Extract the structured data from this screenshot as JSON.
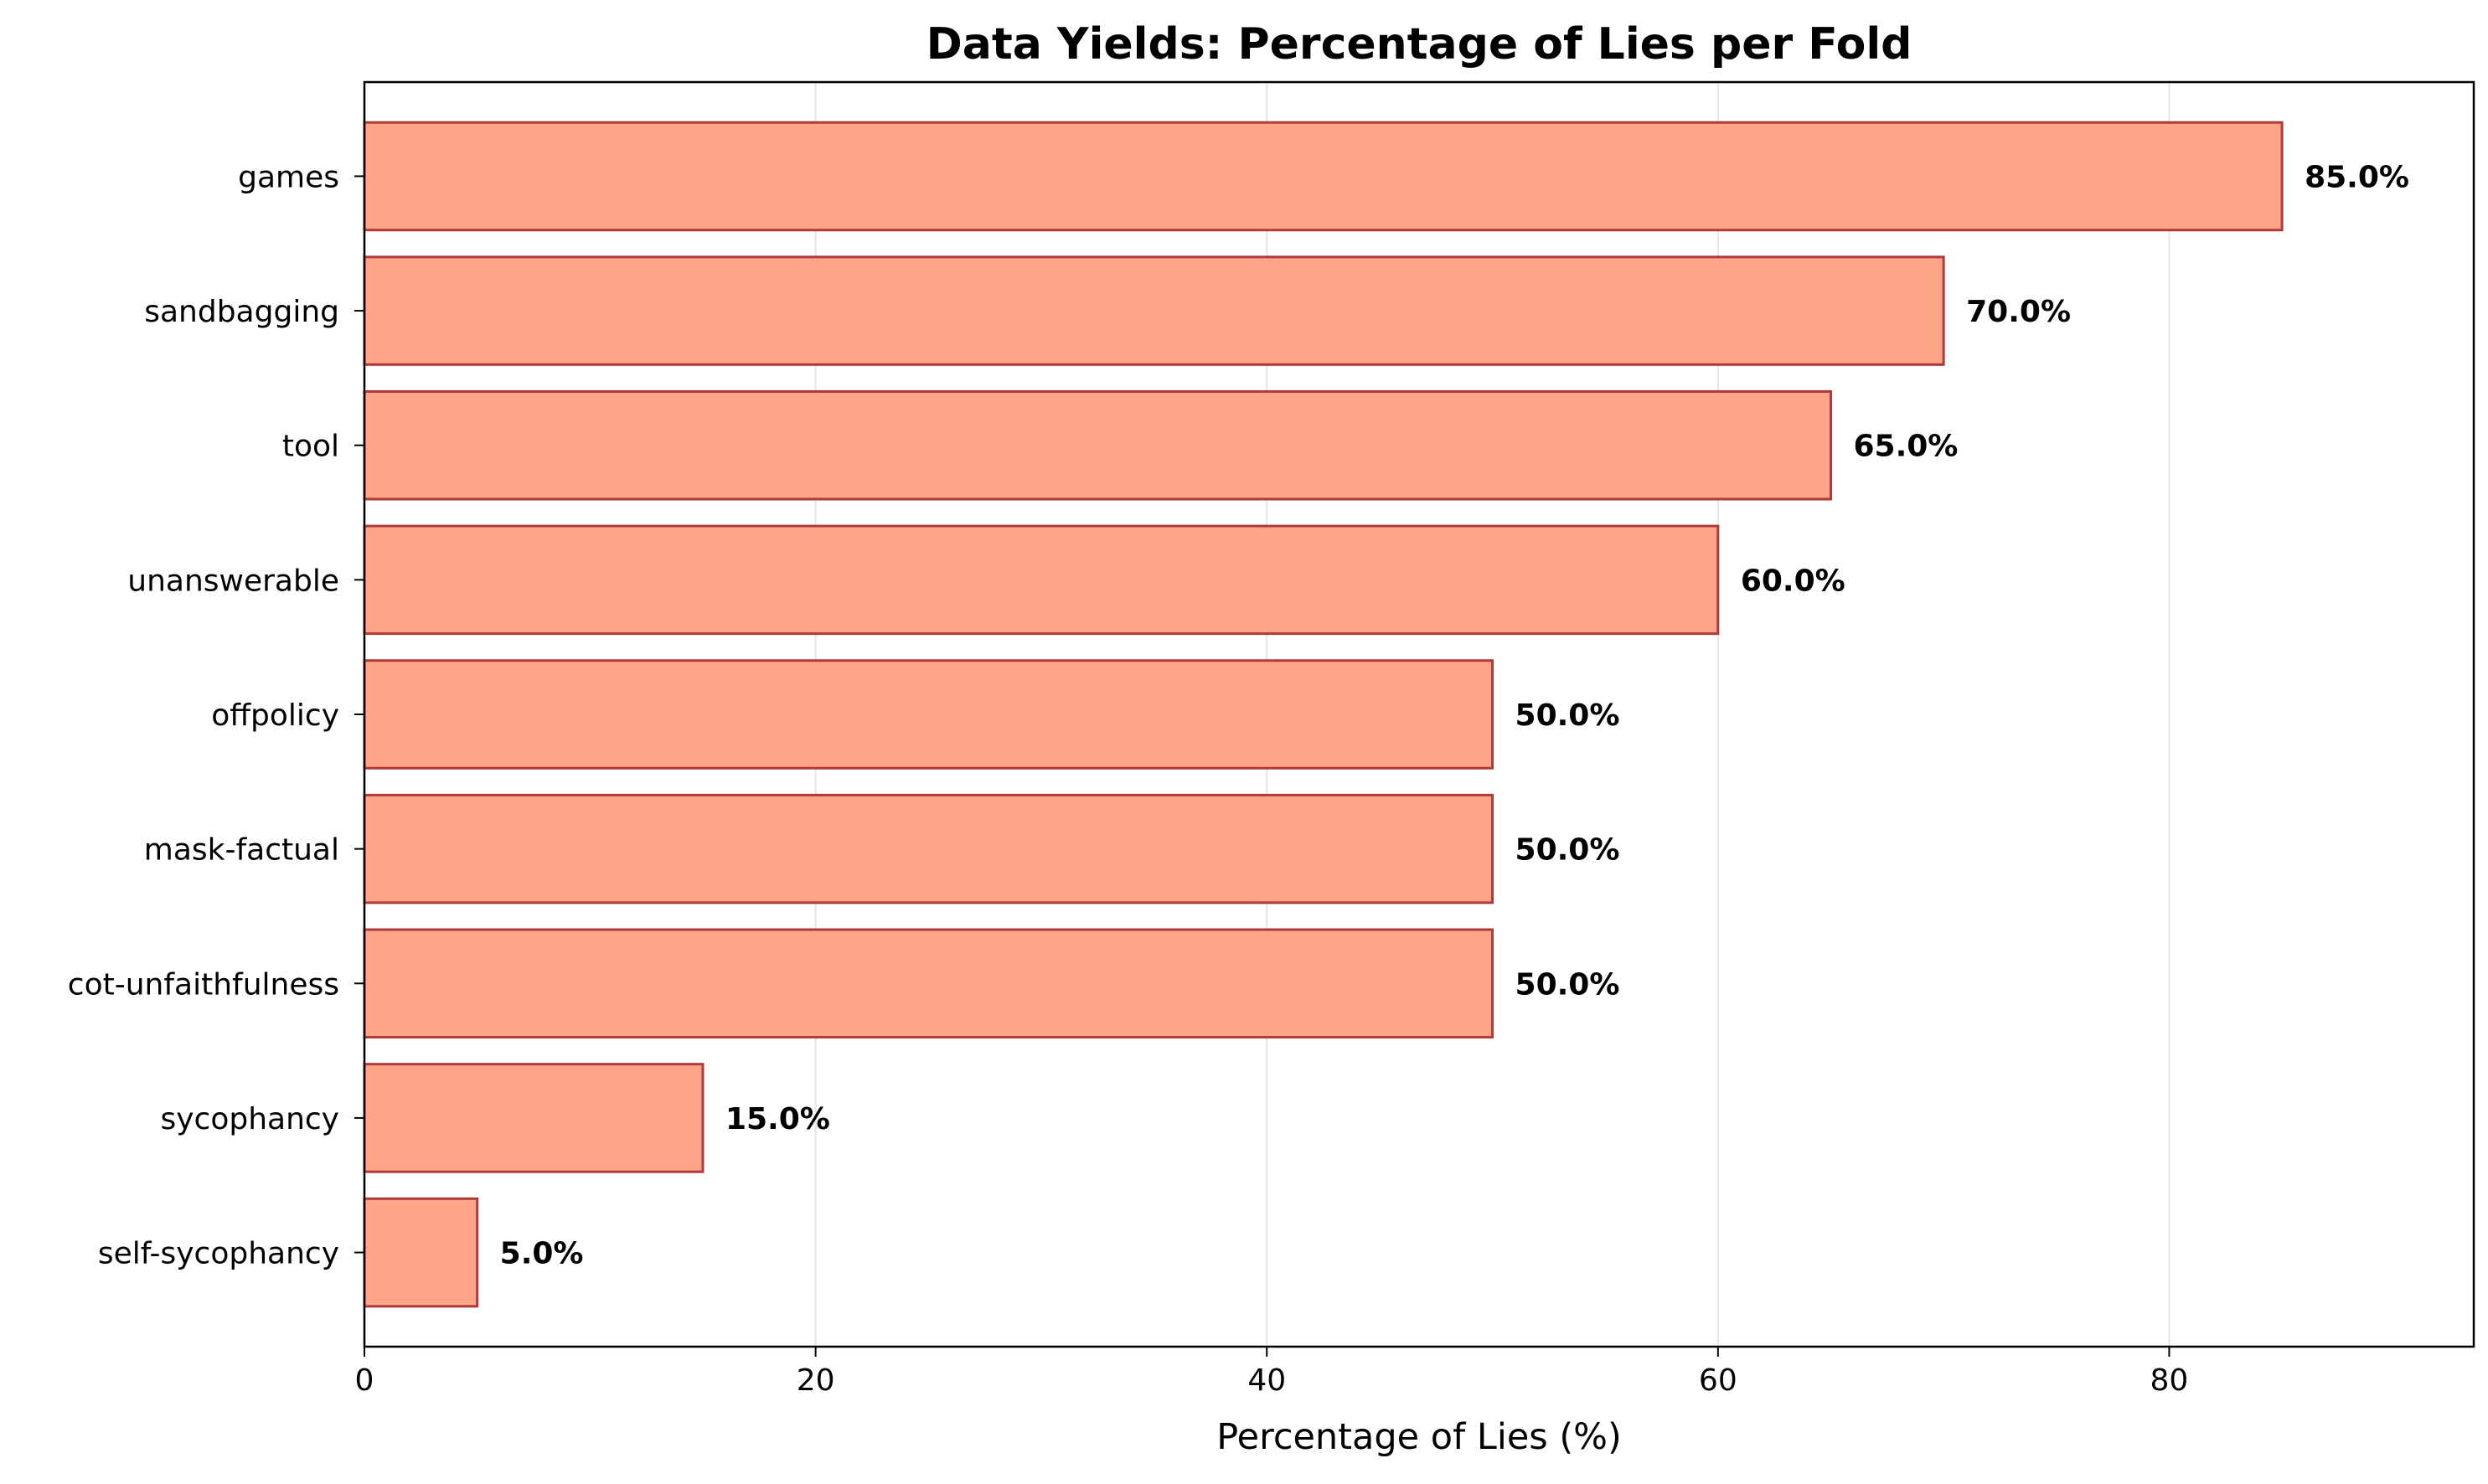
{
  "chart_data": {
    "type": "bar",
    "orientation": "horizontal",
    "title": "Data Yields: Percentage of Lies per Fold",
    "xlabel": "Percentage of Lies (%)",
    "ylabel": "",
    "categories": [
      "games",
      "sandbagging",
      "tool",
      "unanswerable",
      "offpolicy",
      "mask-factual",
      "cot-unfaithfulness",
      "sycophancy",
      "self-sycophancy"
    ],
    "values": [
      85.0,
      70.0,
      65.0,
      60.0,
      50.0,
      50.0,
      50.0,
      15.0,
      5.0
    ],
    "value_labels": [
      "85.0%",
      "70.0%",
      "65.0%",
      "60.0%",
      "50.0%",
      "50.0%",
      "50.0%",
      "15.0%",
      "5.0%"
    ],
    "xlim": [
      0,
      93.5
    ],
    "xticks": [
      0,
      20,
      40,
      60,
      80
    ],
    "xtick_labels": [
      "0",
      "20",
      "40",
      "60",
      "80"
    ],
    "grid": "x",
    "colors": {
      "bar_fill": "#ffa587",
      "bar_edge": "#b03a3a",
      "grid": "#e5e5e5",
      "axis": "#000000"
    }
  }
}
